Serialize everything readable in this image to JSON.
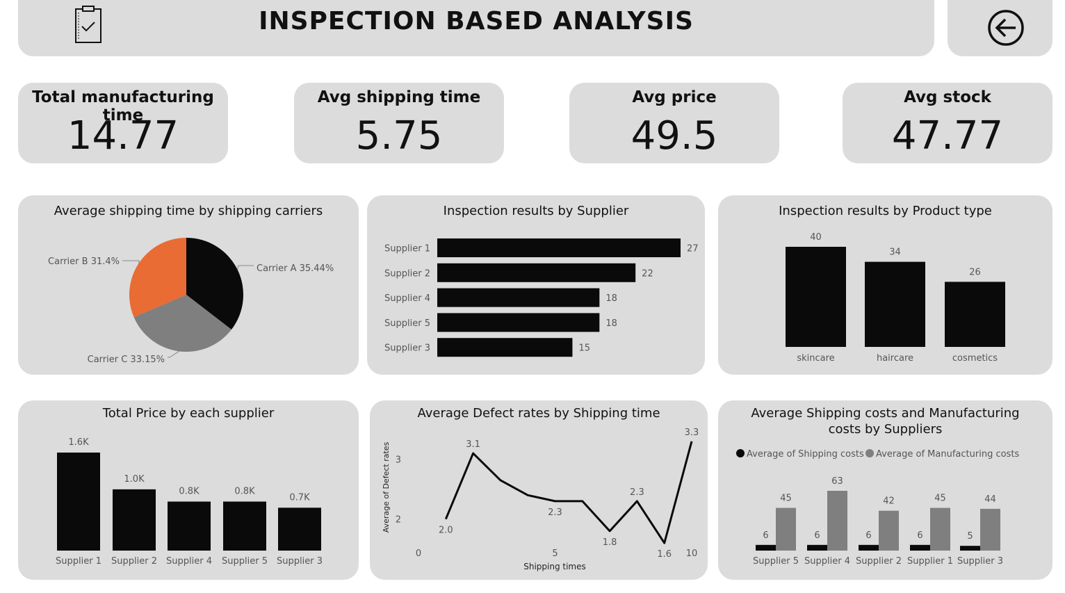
{
  "header": {
    "title": "INSPECTION BASED ANALYSIS",
    "left_icon": "clipboard-check-icon",
    "back_icon": "back-arrow-icon"
  },
  "kpis": [
    {
      "label": "Total manufacturing time",
      "value": "14.77"
    },
    {
      "label": "Avg shipping time",
      "value": "5.75"
    },
    {
      "label": "Avg price",
      "value": "49.5"
    },
    {
      "label": "Avg stock",
      "value": "47.77"
    }
  ],
  "colors": {
    "panel": "#dcdcdc",
    "bar": "#0a0a0a",
    "gray": "#7f7f7f",
    "orange": "#e86c34"
  },
  "chart_data": [
    {
      "type": "pie",
      "title": "Average shipping time by shipping carriers",
      "slices": [
        {
          "name": "Carrier A",
          "value": 35.44,
          "label": "Carrier A 35.44%",
          "color": "#0a0a0a"
        },
        {
          "name": "Carrier C",
          "value": 33.15,
          "label": "Carrier C 33.15%",
          "color": "#7f7f7f"
        },
        {
          "name": "Carrier B",
          "value": 31.4,
          "label": "Carrier B 31.4%",
          "color": "#e86c34"
        }
      ]
    },
    {
      "type": "bar",
      "orientation": "horizontal",
      "title": "Inspection results by Supplier",
      "categories": [
        "Supplier 1",
        "Supplier 2",
        "Supplier 4",
        "Supplier 5",
        "Supplier 3"
      ],
      "values": [
        27,
        22,
        18,
        18,
        15
      ],
      "labels": [
        "27",
        "22",
        "18",
        "18",
        "15"
      ]
    },
    {
      "type": "bar",
      "title": "Inspection results by Product type",
      "categories": [
        "skincare",
        "haircare",
        "cosmetics"
      ],
      "values": [
        40,
        34,
        26
      ],
      "labels": [
        "40",
        "34",
        "26"
      ]
    },
    {
      "type": "bar",
      "title": "Total Price by each supplier",
      "categories": [
        "Supplier 1",
        "Supplier 2",
        "Supplier 4",
        "Supplier 5",
        "Supplier 3"
      ],
      "values": [
        1.6,
        1.0,
        0.8,
        0.8,
        0.7
      ],
      "labels": [
        "1.6K",
        "1.0K",
        "0.8K",
        "0.8K",
        "0.7K"
      ]
    },
    {
      "type": "line",
      "title": "Average Defect rates by Shipping time",
      "xlabel": "Shipping times",
      "ylabel": "Average of Defect rates",
      "x": [
        1,
        2,
        3,
        4,
        5,
        6,
        7,
        8,
        9,
        10
      ],
      "y": [
        2.0,
        3.1,
        2.65,
        2.4,
        2.3,
        2.3,
        1.8,
        2.3,
        1.6,
        3.3
      ],
      "point_labels": [
        {
          "index": 0,
          "text": "2.0"
        },
        {
          "index": 1,
          "text": "3.1"
        },
        {
          "index": 4,
          "text": "2.3"
        },
        {
          "index": 6,
          "text": "1.8"
        },
        {
          "index": 7,
          "text": "2.3"
        },
        {
          "index": 8,
          "text": "1.6"
        },
        {
          "index": 9,
          "text": "3.3"
        }
      ],
      "xticks": [
        "0",
        "5",
        "10"
      ],
      "xtick_values": [
        0,
        5,
        10
      ],
      "yticks": [
        "2",
        "3"
      ],
      "ytick_values": [
        2,
        3
      ],
      "xlim": [
        0,
        10
      ],
      "ylim": [
        1.45,
        3.45
      ]
    },
    {
      "type": "bar",
      "title_lines": [
        "Average Shipping costs and Manufacturing",
        "costs by Suppliers"
      ],
      "legend": [
        "Average of Shipping costs",
        "Average of Manufacturing costs"
      ],
      "categories": [
        "Supplier 5",
        "Supplier 4",
        "Supplier 2",
        "Supplier 1",
        "Supplier 3"
      ],
      "series": [
        {
          "name": "Average of Shipping costs",
          "values": [
            6,
            6,
            6,
            6,
            5
          ],
          "labels": [
            "6",
            "6",
            "6",
            "6",
            "5"
          ],
          "color": "#0a0a0a"
        },
        {
          "name": "Average of Manufacturing costs",
          "values": [
            45,
            63,
            42,
            45,
            44
          ],
          "labels": [
            "45",
            "63",
            "42",
            "45",
            "44"
          ],
          "color": "#7f7f7f"
        }
      ]
    }
  ]
}
